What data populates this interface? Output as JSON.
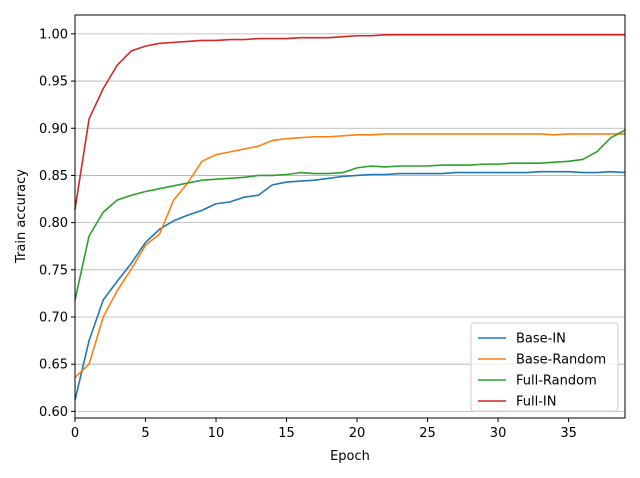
{
  "chart_data": {
    "type": "line",
    "title": "",
    "xlabel": "Epoch",
    "ylabel": "Train accuracy",
    "xlim": [
      0,
      39
    ],
    "ylim": [
      0.593,
      1.02
    ],
    "xticks": [
      0,
      5,
      10,
      15,
      20,
      25,
      30,
      35
    ],
    "yticks": [
      0.6,
      0.65,
      0.7,
      0.75,
      0.8,
      0.85,
      0.9,
      0.95,
      1.0
    ],
    "ytick_labels": [
      "0.60",
      "0.65",
      "0.70",
      "0.75",
      "0.80",
      "0.85",
      "0.90",
      "0.95",
      "1.00"
    ],
    "grid": "horizontal",
    "legend_position": "bottom-right",
    "x": [
      0,
      1,
      2,
      3,
      4,
      5,
      6,
      7,
      8,
      9,
      10,
      11,
      12,
      13,
      14,
      15,
      16,
      17,
      18,
      19,
      20,
      21,
      22,
      23,
      24,
      25,
      26,
      27,
      28,
      29,
      30,
      31,
      32,
      33,
      34,
      35,
      36,
      37,
      38,
      39
    ],
    "series": [
      {
        "name": "Base-IN",
        "color": "#1f77b4",
        "values": [
          0.612,
          0.675,
          0.718,
          0.738,
          0.757,
          0.779,
          0.793,
          0.802,
          0.808,
          0.813,
          0.82,
          0.822,
          0.827,
          0.829,
          0.84,
          0.843,
          0.844,
          0.845,
          0.847,
          0.849,
          0.85,
          0.851,
          0.851,
          0.852,
          0.852,
          0.852,
          0.852,
          0.853,
          0.853,
          0.853,
          0.853,
          0.853,
          0.853,
          0.854,
          0.854,
          0.854,
          0.853,
          0.853,
          0.854,
          0.853
        ]
      },
      {
        "name": "Base-Random",
        "color": "#ff7f0e",
        "values": [
          0.636,
          0.65,
          0.7,
          0.728,
          0.751,
          0.776,
          0.788,
          0.824,
          0.842,
          0.865,
          0.872,
          0.875,
          0.878,
          0.881,
          0.887,
          0.889,
          0.89,
          0.891,
          0.891,
          0.892,
          0.893,
          0.893,
          0.894,
          0.894,
          0.894,
          0.894,
          0.894,
          0.894,
          0.894,
          0.894,
          0.894,
          0.894,
          0.894,
          0.894,
          0.893,
          0.894,
          0.894,
          0.894,
          0.894,
          0.894
        ]
      },
      {
        "name": "Full-Random",
        "color": "#2ca02c",
        "values": [
          0.718,
          0.786,
          0.811,
          0.824,
          0.829,
          0.833,
          0.836,
          0.839,
          0.842,
          0.845,
          0.846,
          0.847,
          0.848,
          0.85,
          0.85,
          0.851,
          0.853,
          0.852,
          0.852,
          0.853,
          0.858,
          0.86,
          0.859,
          0.86,
          0.86,
          0.86,
          0.861,
          0.861,
          0.861,
          0.862,
          0.862,
          0.863,
          0.863,
          0.863,
          0.864,
          0.865,
          0.867,
          0.875,
          0.89,
          0.898
        ]
      },
      {
        "name": "Full-IN",
        "color": "#d62728",
        "values": [
          0.814,
          0.91,
          0.942,
          0.967,
          0.982,
          0.987,
          0.99,
          0.991,
          0.992,
          0.993,
          0.993,
          0.994,
          0.994,
          0.995,
          0.995,
          0.995,
          0.996,
          0.996,
          0.996,
          0.997,
          0.998,
          0.998,
          0.999,
          0.999,
          0.999,
          0.999,
          0.999,
          0.999,
          0.999,
          0.999,
          0.999,
          0.999,
          0.999,
          0.999,
          0.999,
          0.999,
          0.999,
          0.999,
          0.999,
          0.999
        ]
      }
    ]
  }
}
